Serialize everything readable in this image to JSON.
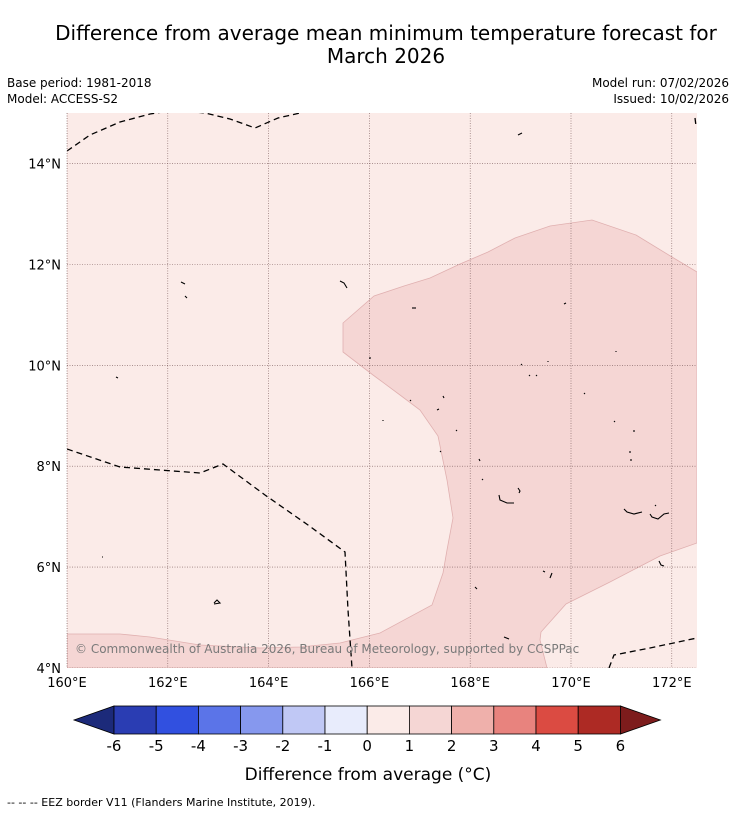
{
  "title": {
    "line1": "Difference from average mean minimum temperature forecast for",
    "line2": "March 2026"
  },
  "meta": {
    "base_period": "Base period: 1981-2018",
    "model": "Model: ACCESS-S2",
    "model_run": "Model run: 07/02/2026",
    "issued": "Issued: 10/02/2026"
  },
  "map": {
    "lon_range": [
      160,
      172.5
    ],
    "lat_range": [
      4,
      15
    ],
    "x_ticks": [
      {
        "value": 160,
        "label": "160°E"
      },
      {
        "value": 162,
        "label": "162°E"
      },
      {
        "value": 164,
        "label": "164°E"
      },
      {
        "value": 166,
        "label": "166°E"
      },
      {
        "value": 168,
        "label": "168°E"
      },
      {
        "value": 170,
        "label": "170°E"
      },
      {
        "value": 172,
        "label": "172°E"
      }
    ],
    "y_ticks": [
      {
        "value": 4,
        "label": "4°N"
      },
      {
        "value": 6,
        "label": "6°N"
      },
      {
        "value": 8,
        "label": "8°N"
      },
      {
        "value": 10,
        "label": "10°N"
      },
      {
        "value": 12,
        "label": "12°N"
      },
      {
        "value": 14,
        "label": "14°N"
      }
    ],
    "background_class_color": "#fbebe8",
    "zone_1_2_color": "#f5d6d4",
    "grid": true,
    "copyright": "© Commonwealth of Australia 2026, Bureau of Meteorology, supported by CCSPPac"
  },
  "colorbar": {
    "label": "Difference from average (°C)",
    "ticks": [
      "-6",
      "-5",
      "-4",
      "-3",
      "-2",
      "-1",
      "0",
      "1",
      "2",
      "3",
      "4",
      "5",
      "6"
    ],
    "low_extend_color": "#1c2a7a",
    "high_extend_color": "#7d1c1c",
    "colors": [
      "#2a3db3",
      "#3150e0",
      "#5b74e8",
      "#8698ee",
      "#c0c8f5",
      "#e8ecfc",
      "#fbebe8",
      "#f5d6d4",
      "#efb0ab",
      "#e8837e",
      "#db4b42",
      "#ad2a24"
    ]
  },
  "footnote": "--  --  -- EEZ border V11 (Flanders Marine Institute, 2019)."
}
